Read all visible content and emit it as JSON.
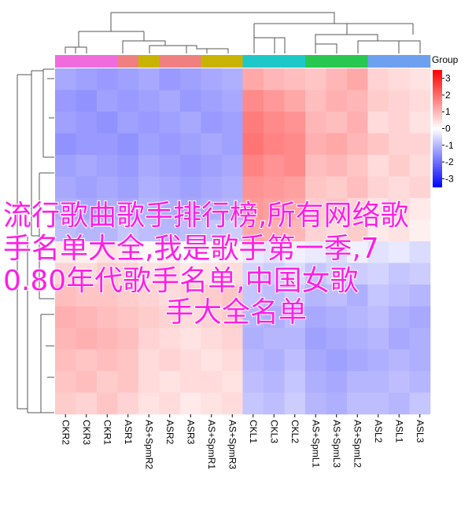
{
  "chart_data": {
    "type": "heatmap",
    "columns": [
      "CKR2",
      "CKR3",
      "CKR1",
      "ASR1",
      "AS+SpmR2",
      "ASR2",
      "ASR3",
      "AS+SpmR1",
      "AS+SpmR3",
      "CKL1",
      "CKL3",
      "CKL2",
      "AS+SpmL1",
      "AS+SpmL3",
      "AS+SpmL2",
      "ASL2",
      "ASL1",
      "ASL3"
    ],
    "column_colors": [
      "#f06cdc",
      "#f06cdc",
      "#f06cdc",
      "#f08080",
      "#c8b400",
      "#f08080",
      "#f08080",
      "#c8b400",
      "#c8b400",
      "#1ec8c8",
      "#1ec8c8",
      "#1ec8c8",
      "#28c850",
      "#28c850",
      "#28c850",
      "#6ea0f0",
      "#6ea0f0",
      "#6ea0f0"
    ],
    "legend_title": "Group",
    "zlim": [
      -3.5,
      3.5
    ],
    "zticks": [
      3,
      2,
      1,
      0,
      -1,
      -2,
      -3
    ],
    "low_color": "#0000ff",
    "mid_color": "#ffffff",
    "high_color": "#ff0000",
    "values": [
      [
        -1.2,
        -1.3,
        -1.4,
        -1.3,
        -1.2,
        -1.4,
        -1.3,
        -1.2,
        -1.1,
        1.2,
        1.0,
        0.9,
        0.8,
        1.0,
        1.2,
        0.6,
        0.5,
        0.4
      ],
      [
        -1.4,
        -1.5,
        -1.3,
        -1.4,
        -1.3,
        -1.2,
        -1.4,
        -1.3,
        -1.2,
        1.6,
        1.4,
        1.2,
        0.9,
        1.1,
        1.0,
        0.7,
        0.6,
        0.5
      ],
      [
        -1.3,
        -1.4,
        -1.5,
        -1.3,
        -1.4,
        -1.3,
        -1.2,
        -1.4,
        -1.3,
        1.8,
        1.6,
        1.5,
        1.0,
        0.9,
        1.1,
        0.5,
        0.6,
        0.4
      ],
      [
        -1.5,
        -1.4,
        -1.4,
        -1.5,
        -1.3,
        -1.4,
        -1.3,
        -1.2,
        -1.3,
        1.9,
        1.7,
        1.6,
        1.1,
        1.2,
        1.0,
        0.8,
        0.6,
        0.6
      ],
      [
        -1.3,
        -1.2,
        -1.3,
        -1.4,
        -1.2,
        -1.3,
        -1.4,
        -1.3,
        -1.2,
        1.7,
        1.5,
        1.6,
        0.9,
        1.0,
        0.8,
        0.5,
        0.7,
        0.5
      ],
      [
        -1.2,
        -1.3,
        -1.2,
        -1.3,
        -1.1,
        -1.2,
        -1.3,
        -1.2,
        -1.1,
        1.5,
        1.4,
        1.3,
        0.8,
        0.7,
        0.9,
        0.6,
        0.5,
        0.6
      ],
      [
        -1.1,
        -1.2,
        -1.1,
        -1.2,
        -1.0,
        -1.1,
        -1.2,
        -1.1,
        -1.0,
        1.4,
        1.3,
        1.2,
        0.7,
        0.8,
        0.6,
        0.4,
        0.5,
        0.3
      ],
      [
        -0.9,
        -1.0,
        -1.0,
        -0.8,
        -0.9,
        -1.0,
        -0.9,
        -0.8,
        -0.7,
        1.2,
        1.1,
        1.0,
        0.6,
        0.5,
        0.7,
        0.3,
        0.4,
        0.2
      ],
      [
        0.3,
        0.2,
        0.4,
        0.3,
        0.1,
        0.2,
        0.0,
        0.1,
        0.2,
        -0.3,
        -0.4,
        -0.2,
        -0.3,
        -0.5,
        -0.2,
        -0.4,
        -0.3,
        -0.5
      ],
      [
        0.6,
        0.5,
        0.7,
        0.6,
        0.4,
        0.5,
        0.3,
        0.4,
        0.5,
        -0.6,
        -0.7,
        -0.5,
        -0.8,
        -0.6,
        -0.7,
        -0.6,
        -0.8,
        -0.7
      ],
      [
        0.9,
        0.8,
        0.8,
        0.7,
        0.6,
        0.5,
        0.6,
        0.7,
        0.8,
        -0.8,
        -0.9,
        -0.7,
        -1.0,
        -0.9,
        -1.1,
        -0.8,
        -0.9,
        -1.0
      ],
      [
        1.1,
        1.0,
        0.9,
        0.8,
        0.7,
        0.6,
        0.5,
        0.6,
        0.7,
        -1.0,
        -1.1,
        -0.9,
        -1.2,
        -1.1,
        -1.0,
        -0.9,
        -1.1,
        -1.2
      ],
      [
        1.0,
        1.1,
        1.0,
        0.9,
        0.6,
        0.5,
        0.4,
        0.5,
        0.6,
        -1.1,
        -1.0,
        -1.0,
        -1.3,
        -1.2,
        -1.1,
        -1.0,
        -1.2,
        -1.1
      ],
      [
        0.9,
        0.8,
        0.9,
        0.8,
        0.5,
        0.6,
        0.5,
        0.4,
        0.5,
        -1.0,
        -1.1,
        -0.9,
        -1.2,
        -1.3,
        -1.2,
        -1.1,
        -1.0,
        -1.1
      ],
      [
        0.8,
        0.9,
        0.7,
        0.8,
        0.5,
        0.4,
        0.5,
        0.5,
        0.4,
        -0.9,
        -1.0,
        -0.8,
        -1.1,
        -1.2,
        -1.0,
        -1.0,
        -0.9,
        -1.0
      ],
      [
        0.7,
        0.6,
        0.8,
        0.6,
        0.4,
        0.5,
        0.3,
        0.4,
        0.5,
        -0.8,
        -0.9,
        -0.7,
        -1.0,
        -1.1,
        -0.9,
        -0.9,
        -1.0,
        -0.8
      ]
    ],
    "annotations": [
      "流行歌曲歌手排行榜,所有网络歌",
      "手名单大全,我是歌手第一季,7",
      "0.80年代歌手名单,中国女歌",
      "手大全名单"
    ]
  }
}
